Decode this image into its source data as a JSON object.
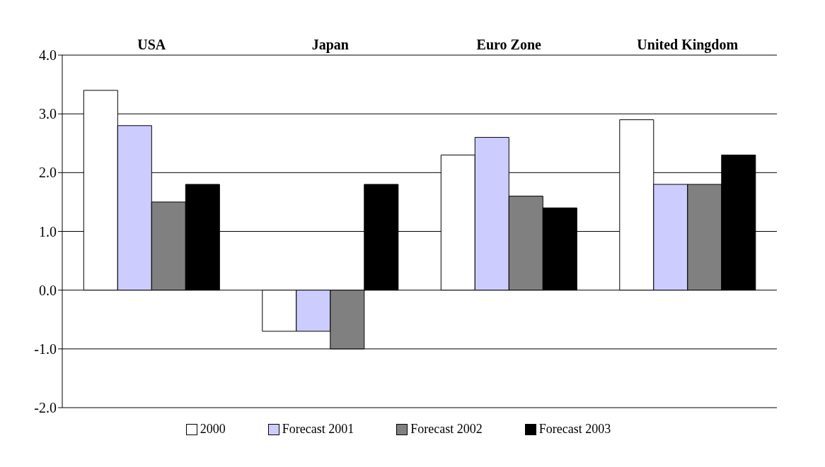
{
  "chart_data": {
    "type": "bar",
    "categories": [
      "USA",
      "Japan",
      "Euro Zone",
      "United Kingdom"
    ],
    "series": [
      {
        "name": "2000",
        "color": "#ffffff",
        "values": [
          3.4,
          -0.7,
          2.3,
          2.9
        ]
      },
      {
        "name": "Forecast 2001",
        "color": "#ccccff",
        "values": [
          2.8,
          -0.7,
          2.6,
          1.8
        ]
      },
      {
        "name": "Forecast 2002",
        "color": "#808080",
        "values": [
          1.5,
          -1.0,
          1.6,
          1.8
        ]
      },
      {
        "name": "Forecast 2003",
        "color": "#000000",
        "values": [
          1.8,
          1.8,
          1.4,
          2.3
        ]
      }
    ],
    "ylim": [
      -2,
      4
    ],
    "yticks": [
      {
        "value": -2,
        "label": "-2.0"
      },
      {
        "value": -1,
        "label": "-1.0"
      },
      {
        "value": 0,
        "label": "0.0"
      },
      {
        "value": 1,
        "label": "1.0"
      },
      {
        "value": 2,
        "label": "2.0"
      },
      {
        "value": 3,
        "label": "3.0"
      },
      {
        "value": 4,
        "label": "4.0"
      }
    ],
    "grid": "y",
    "legend": "bottom"
  }
}
